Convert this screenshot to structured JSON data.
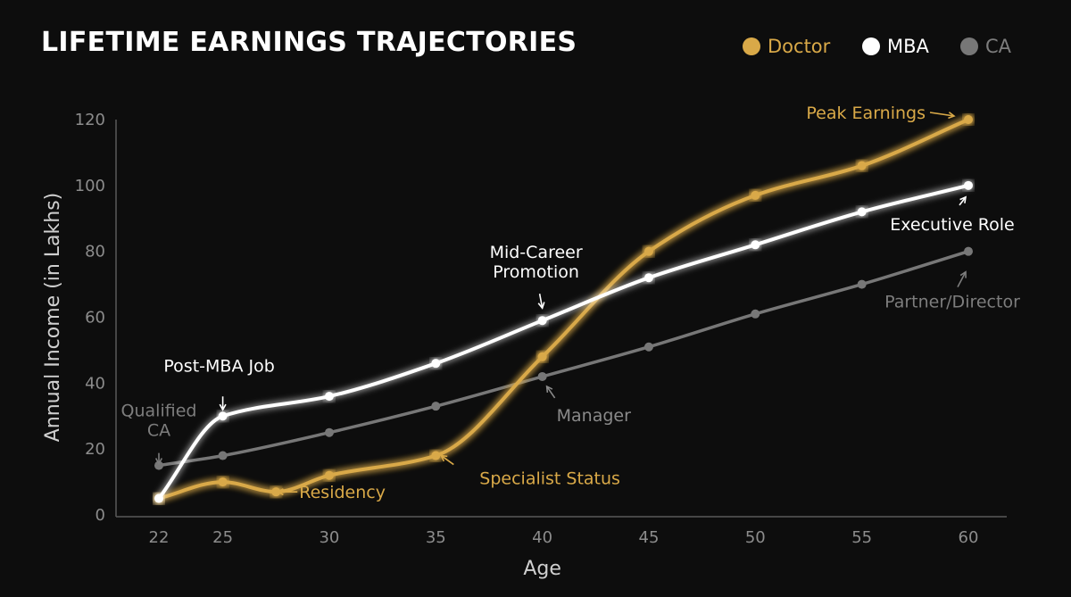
{
  "chart_data": {
    "type": "line",
    "title": "LIFETIME EARNINGS TRAJECTORIES",
    "xlabel": "Age",
    "ylabel": "Annual Income (in Lakhs)",
    "xlim": [
      22,
      60
    ],
    "ylim": [
      0,
      120
    ],
    "xticks": [
      22,
      25,
      30,
      35,
      40,
      45,
      50,
      55,
      60
    ],
    "yticks": [
      0,
      20,
      40,
      60,
      80,
      100,
      120
    ],
    "grid": false,
    "legend_position": "top-right",
    "series": [
      {
        "name": "Doctor",
        "color": "#d9a948",
        "points": [
          [
            22,
            5
          ],
          [
            25,
            10
          ],
          [
            27.5,
            7
          ],
          [
            30,
            12
          ],
          [
            35,
            18
          ],
          [
            40,
            48
          ],
          [
            45,
            80
          ],
          [
            50,
            97
          ],
          [
            55,
            106
          ],
          [
            60,
            120
          ]
        ]
      },
      {
        "name": "MBA",
        "color": "#ffffff",
        "points": [
          [
            22,
            5
          ],
          [
            25,
            30
          ],
          [
            30,
            36
          ],
          [
            35,
            46
          ],
          [
            40,
            59
          ],
          [
            45,
            72
          ],
          [
            50,
            82
          ],
          [
            55,
            92
          ],
          [
            60,
            100
          ]
        ]
      },
      {
        "name": "CA",
        "color": "#777777",
        "points": [
          [
            22,
            15
          ],
          [
            25,
            18
          ],
          [
            30,
            25
          ],
          [
            35,
            33
          ],
          [
            40,
            42
          ],
          [
            45,
            51
          ],
          [
            50,
            61
          ],
          [
            55,
            70
          ],
          [
            60,
            80
          ]
        ]
      }
    ],
    "annotations": [
      {
        "id": "post-mba-job",
        "lines": [
          "Post-MBA Job"
        ],
        "series": "MBA",
        "at": [
          25,
          30
        ],
        "arrow": "down",
        "color": "#ffffff"
      },
      {
        "id": "qualified-ca",
        "lines": [
          "Qualified",
          "CA"
        ],
        "series": "CA",
        "at": [
          22,
          15
        ],
        "arrow": "down",
        "color": "#7d7d7d"
      },
      {
        "id": "residency",
        "lines": [
          "Residency"
        ],
        "series": "Doctor",
        "at": [
          27.5,
          7
        ],
        "arrow": "left",
        "color": "#d9a948"
      },
      {
        "id": "specialist-status",
        "lines": [
          "Specialist Status"
        ],
        "series": "Doctor",
        "at": [
          35,
          18
        ],
        "arrow": "up-left",
        "color": "#d9a948"
      },
      {
        "id": "mid-career-promotion",
        "lines": [
          "Mid-Career",
          "Promotion"
        ],
        "series": "MBA",
        "at": [
          40,
          59
        ],
        "arrow": "down",
        "color": "#ffffff"
      },
      {
        "id": "manager",
        "lines": [
          "Manager"
        ],
        "series": "CA",
        "at": [
          40,
          42
        ],
        "arrow": "up-left",
        "color": "#8a8a8a"
      },
      {
        "id": "peak-earnings",
        "lines": [
          "Peak Earnings"
        ],
        "series": "Doctor",
        "at": [
          60,
          120
        ],
        "arrow": "right",
        "color": "#d9a948"
      },
      {
        "id": "executive-role",
        "lines": [
          "Executive Role"
        ],
        "series": "MBA",
        "at": [
          60,
          100
        ],
        "arrow": "up",
        "color": "#ffffff"
      },
      {
        "id": "partner-director",
        "lines": [
          "Partner/Director"
        ],
        "series": "CA",
        "at": [
          60,
          80
        ],
        "arrow": "up",
        "color": "#7d7d7d"
      }
    ]
  }
}
